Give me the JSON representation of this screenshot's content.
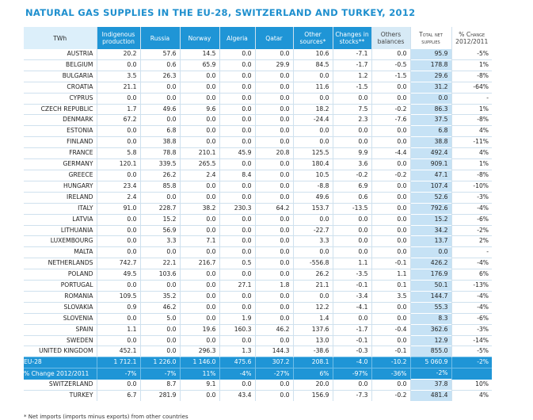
{
  "title": "NATURAL GAS SUPPLIES IN THE EU-28, SWITZERLAND AND TURKEY, 2012",
  "headers": {
    "unit": "TWh",
    "prod": [
      "Indigenous",
      "production"
    ],
    "ru": "Russia",
    "no": "Norway",
    "dz": "Algeria",
    "qa": "Qatar",
    "oth": [
      "Other",
      "sources*"
    ],
    "stk": [
      "Changes in",
      "stocks**"
    ],
    "bal": [
      "Others",
      "balances"
    ],
    "tot": [
      "Total net",
      "supplies"
    ],
    "chg": [
      "% Change",
      "2012/2011"
    ]
  },
  "rows": [
    {
      "name": "AUSTRIA",
      "prod": "20.2",
      "ru": "57.6",
      "no": "14.5",
      "dz": "0.0",
      "qa": "0.0",
      "oth": "10.6",
      "stk": "-7.1",
      "bal": "0.0",
      "tot": "95.9",
      "chg": "-5%"
    },
    {
      "name": "BELGIUM",
      "prod": "0.0",
      "ru": "0.6",
      "no": "65.9",
      "dz": "0.0",
      "qa": "29.9",
      "oth": "84.5",
      "stk": "-1.7",
      "bal": "-0.5",
      "tot": "178.8",
      "chg": "1%"
    },
    {
      "name": "BULGARIA",
      "prod": "3.5",
      "ru": "26.3",
      "no": "0.0",
      "dz": "0.0",
      "qa": "0.0",
      "oth": "0.0",
      "stk": "1.2",
      "bal": "-1.5",
      "tot": "29.6",
      "chg": "-8%"
    },
    {
      "name": "CROATIA",
      "prod": "21.1",
      "ru": "0.0",
      "no": "0.0",
      "dz": "0.0",
      "qa": "0.0",
      "oth": "11.6",
      "stk": "-1.5",
      "bal": "0.0",
      "tot": "31.2",
      "chg": "-64%"
    },
    {
      "name": "CYPRUS",
      "prod": "0.0",
      "ru": "0.0",
      "no": "0.0",
      "dz": "0.0",
      "qa": "0.0",
      "oth": "0.0",
      "stk": "0.0",
      "bal": "0.0",
      "tot": "0.0",
      "chg": "-"
    },
    {
      "name": "CZECH REPUBLIC",
      "prod": "1.7",
      "ru": "49.6",
      "no": "9.6",
      "dz": "0.0",
      "qa": "0.0",
      "oth": "18.2",
      "stk": "7.5",
      "bal": "-0.2",
      "tot": "86.3",
      "chg": "1%"
    },
    {
      "name": "DENMARK",
      "prod": "67.2",
      "ru": "0.0",
      "no": "0.0",
      "dz": "0.0",
      "qa": "0.0",
      "oth": "-24.4",
      "stk": "2.3",
      "bal": "-7.6",
      "tot": "37.5",
      "chg": "-8%"
    },
    {
      "name": "ESTONIA",
      "prod": "0.0",
      "ru": "6.8",
      "no": "0.0",
      "dz": "0.0",
      "qa": "0.0",
      "oth": "0.0",
      "stk": "0.0",
      "bal": "0.0",
      "tot": "6.8",
      "chg": "4%"
    },
    {
      "name": "FINLAND",
      "prod": "0.0",
      "ru": "38.8",
      "no": "0.0",
      "dz": "0.0",
      "qa": "0.0",
      "oth": "0.0",
      "stk": "0.0",
      "bal": "0.0",
      "tot": "38.8",
      "chg": "-11%"
    },
    {
      "name": "FRANCE",
      "prod": "5.8",
      "ru": "78.8",
      "no": "210.1",
      "dz": "45.9",
      "qa": "20.8",
      "oth": "125.5",
      "stk": "9.9",
      "bal": "-4.4",
      "tot": "492.4",
      "chg": "4%"
    },
    {
      "name": "GERMANY",
      "prod": "120.1",
      "ru": "339.5",
      "no": "265.5",
      "dz": "0.0",
      "qa": "0.0",
      "oth": "180.4",
      "stk": "3.6",
      "bal": "0.0",
      "tot": "909.1",
      "chg": "1%"
    },
    {
      "name": "GREECE",
      "prod": "0.0",
      "ru": "26.2",
      "no": "2.4",
      "dz": "8.4",
      "qa": "0.0",
      "oth": "10.5",
      "stk": "-0.2",
      "bal": "-0.2",
      "tot": "47.1",
      "chg": "-8%"
    },
    {
      "name": "HUNGARY",
      "prod": "23.4",
      "ru": "85.8",
      "no": "0.0",
      "dz": "0.0",
      "qa": "0.0",
      "oth": "-8.8",
      "stk": "6.9",
      "bal": "0.0",
      "tot": "107.4",
      "chg": "-10%"
    },
    {
      "name": "IRELAND",
      "prod": "2.4",
      "ru": "0.0",
      "no": "0.0",
      "dz": "0.0",
      "qa": "0.0",
      "oth": "49.6",
      "stk": "0.6",
      "bal": "0.0",
      "tot": "52.6",
      "chg": "-3%"
    },
    {
      "name": "ITALY",
      "prod": "91.0",
      "ru": "228.7",
      "no": "38.2",
      "dz": "230.3",
      "qa": "64.2",
      "oth": "153.7",
      "stk": "-13.5",
      "bal": "0.0",
      "tot": "792.6",
      "chg": "-4%"
    },
    {
      "name": "LATVIA",
      "prod": "0.0",
      "ru": "15.2",
      "no": "0.0",
      "dz": "0.0",
      "qa": "0.0",
      "oth": "0.0",
      "stk": "0.0",
      "bal": "0.0",
      "tot": "15.2",
      "chg": "-6%"
    },
    {
      "name": "LITHUANIA",
      "prod": "0.0",
      "ru": "56.9",
      "no": "0.0",
      "dz": "0.0",
      "qa": "0.0",
      "oth": "-22.7",
      "stk": "0.0",
      "bal": "0.0",
      "tot": "34.2",
      "chg": "-2%"
    },
    {
      "name": "LUXEMBOURG",
      "prod": "0.0",
      "ru": "3.3",
      "no": "7.1",
      "dz": "0.0",
      "qa": "0.0",
      "oth": "3.3",
      "stk": "0.0",
      "bal": "0.0",
      "tot": "13.7",
      "chg": "2%"
    },
    {
      "name": "MALTA",
      "prod": "0.0",
      "ru": "0.0",
      "no": "0.0",
      "dz": "0.0",
      "qa": "0.0",
      "oth": "0.0",
      "stk": "0.0",
      "bal": "0.0",
      "tot": "0.0",
      "chg": "-"
    },
    {
      "name": "NETHERLANDS",
      "prod": "742.7",
      "ru": "22.1",
      "no": "216.7",
      "dz": "0.5",
      "qa": "0.0",
      "oth": "-556.8",
      "stk": "1.1",
      "bal": "-0.1",
      "tot": "426.2",
      "chg": "-4%"
    },
    {
      "name": "POLAND",
      "prod": "49.5",
      "ru": "103.6",
      "no": "0.0",
      "dz": "0.0",
      "qa": "0.0",
      "oth": "26.2",
      "stk": "-3.5",
      "bal": "1.1",
      "tot": "176.9",
      "chg": "6%"
    },
    {
      "name": "PORTUGAL",
      "prod": "0.0",
      "ru": "0.0",
      "no": "0.0",
      "dz": "27.1",
      "qa": "1.8",
      "oth": "21.1",
      "stk": "-0.1",
      "bal": "0.1",
      "tot": "50.1",
      "chg": "-13%"
    },
    {
      "name": "ROMANIA",
      "prod": "109.5",
      "ru": "35.2",
      "no": "0.0",
      "dz": "0.0",
      "qa": "0.0",
      "oth": "0.0",
      "stk": "-3.4",
      "bal": "3.5",
      "tot": "144.7",
      "chg": "-4%"
    },
    {
      "name": "SLOVAKIA",
      "prod": "0.9",
      "ru": "46.2",
      "no": "0.0",
      "dz": "0.0",
      "qa": "0.0",
      "oth": "12.2",
      "stk": "-4.1",
      "bal": "0.0",
      "tot": "55.3",
      "chg": "-4%"
    },
    {
      "name": "SLOVENIA",
      "prod": "0.0",
      "ru": "5.0",
      "no": "0.0",
      "dz": "1.9",
      "qa": "0.0",
      "oth": "1.4",
      "stk": "0.0",
      "bal": "0.0",
      "tot": "8.3",
      "chg": "-6%"
    },
    {
      "name": "SPAIN",
      "prod": "1.1",
      "ru": "0.0",
      "no": "19.6",
      "dz": "160.3",
      "qa": "46.2",
      "oth": "137.6",
      "stk": "-1.7",
      "bal": "-0.4",
      "tot": "362.6",
      "chg": "-3%"
    },
    {
      "name": "SWEDEN",
      "prod": "0.0",
      "ru": "0.0",
      "no": "0.0",
      "dz": "0.0",
      "qa": "0.0",
      "oth": "13.0",
      "stk": "-0.1",
      "bal": "0.0",
      "tot": "12.9",
      "chg": "-14%"
    },
    {
      "name": "UNITED KINGDOM",
      "prod": "452.1",
      "ru": "0.0",
      "no": "296.3",
      "dz": "1.3",
      "qa": "144.3",
      "oth": "-38.6",
      "stk": "-0.3",
      "bal": "-0.1",
      "tot": "855.0",
      "chg": "-5%"
    }
  ],
  "eu28": {
    "name": "EU-28",
    "prod": "1 712.1",
    "ru": "1 226.0",
    "no": "1 146.0",
    "dz": "475.6",
    "qa": "307.2",
    "oth": "208.1",
    "stk": "-4.0",
    "bal": "-10.2",
    "tot": "5 060.9",
    "chg": "-2%"
  },
  "eu_change": {
    "name": "% Change 2012/2011",
    "prod": "-7%",
    "ru": "-7%",
    "no": "11%",
    "dz": "-4%",
    "qa": "-27%",
    "oth": "6%",
    "stk": "-97%",
    "bal": "-36%",
    "tot": "-2%",
    "chg": ""
  },
  "others": [
    {
      "name": "SWITZERLAND",
      "prod": "0.0",
      "ru": "8.7",
      "no": "9.1",
      "dz": "0.0",
      "qa": "0.0",
      "oth": "20.0",
      "stk": "0.0",
      "bal": "0.0",
      "tot": "37.8",
      "chg": "10%"
    },
    {
      "name": "TURKEY",
      "prod": "6.7",
      "ru": "281.9",
      "no": "0.0",
      "dz": "43.4",
      "qa": "0.0",
      "oth": "156.9",
      "stk": "-7.3",
      "bal": "-0.2",
      "tot": "481.4",
      "chg": "4%"
    }
  ],
  "footnote": "* Net imports (imports minus exports) from other countries"
}
